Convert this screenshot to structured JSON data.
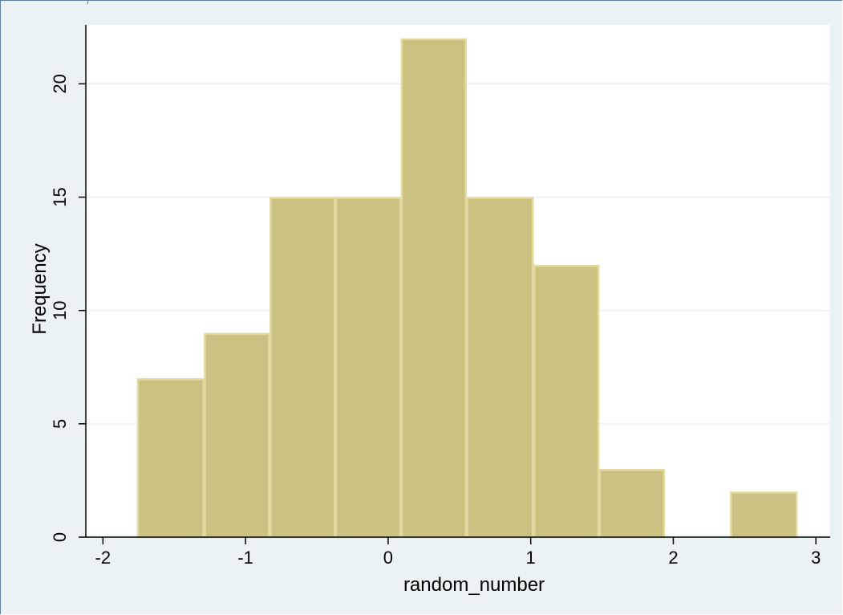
{
  "colors": {
    "background": "#eaf2f3",
    "plot_area": "#ffffff",
    "bar_fill": "#cbc281",
    "bar_edge": "#e2d99f",
    "gridline": "#e9eff1",
    "axis": "#000000"
  },
  "chart_data": {
    "type": "bar",
    "subtype": "histogram",
    "xlabel": "random_number",
    "ylabel": "Frequency",
    "xlim": [
      -2.12,
      3.1
    ],
    "ylim": [
      0,
      22.6
    ],
    "x_ticks": [
      -2,
      -1,
      0,
      1,
      2,
      3
    ],
    "x_tick_labels": [
      "-2",
      "-1",
      "0",
      "1",
      "2",
      "3"
    ],
    "y_ticks": [
      0,
      5,
      10,
      15,
      20
    ],
    "y_tick_labels": [
      "0",
      "5",
      "10",
      "15",
      "20"
    ],
    "grid": true,
    "bins": [
      {
        "x0": -1.76,
        "x1": -1.29,
        "count": 7
      },
      {
        "x0": -1.29,
        "x1": -0.83,
        "count": 9
      },
      {
        "x0": -0.83,
        "x1": -0.37,
        "count": 15
      },
      {
        "x0": -0.37,
        "x1": 0.09,
        "count": 15
      },
      {
        "x0": 0.09,
        "x1": 0.55,
        "count": 22
      },
      {
        "x0": 0.55,
        "x1": 1.02,
        "count": 15
      },
      {
        "x0": 1.02,
        "x1": 1.48,
        "count": 12
      },
      {
        "x0": 1.48,
        "x1": 1.94,
        "count": 3
      },
      {
        "x0": 1.94,
        "x1": 2.4,
        "count": 0
      },
      {
        "x0": 2.4,
        "x1": 2.87,
        "count": 2
      }
    ]
  }
}
